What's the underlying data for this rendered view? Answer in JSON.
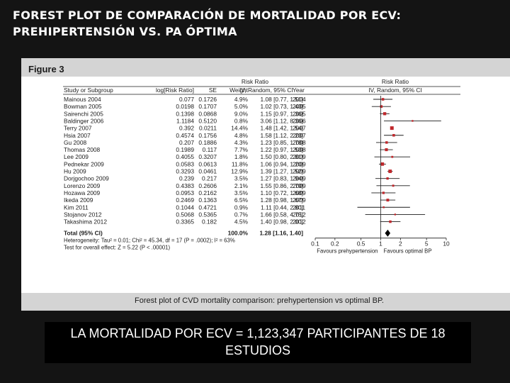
{
  "slide": {
    "title_line1": "FOREST PLOT DE COMPARACIÓN DE MORTALIDAD POR ECV:",
    "title_line2": "PREHIPERTENSIÓN VS. PA ÓPTIMA",
    "footer_text": "LA MORTALIDAD POR ECV = 1,123,347 PARTICIPANTES DE 18 ESTUDIOS"
  },
  "figure": {
    "label": "Figure 3",
    "caption": "Forest plot of CVD mortality comparison: prehypertension vs optimal BP."
  },
  "chart_data": {
    "type": "scatter",
    "scale": "log",
    "header": {
      "group_ratio_title": "Risk Ratio",
      "col_study": "Study or Subgroup",
      "col_logrr": "log[Risk Ratio]",
      "col_se": "SE",
      "col_weight": "Weight",
      "col_ci": "IV, Random, 95% CI",
      "col_year": "Year",
      "plot_title": "Risk Ratio",
      "plot_subtitle": "IV, Random, 95% CI"
    },
    "studies": [
      {
        "name": "Mainous 2004",
        "logrr": "0.077",
        "se": "0.1726",
        "weight": "4.9%",
        "rr": 1.08,
        "lo": 0.77,
        "hi": 1.51,
        "ci": "1.08 [0.77, 1.51]",
        "year": "2004",
        "w": 4.9
      },
      {
        "name": "Bowman 2005",
        "logrr": "0.0198",
        "se": "0.1707",
        "weight": "5.0%",
        "rr": 1.02,
        "lo": 0.73,
        "hi": 1.43,
        "ci": "1.02 [0.73, 1.43]",
        "year": "2005",
        "w": 5.0
      },
      {
        "name": "Sairenchi 2005",
        "logrr": "0.1398",
        "se": "0.0868",
        "weight": "9.0%",
        "rr": 1.15,
        "lo": 0.97,
        "hi": 1.36,
        "ci": "1.15 [0.97, 1.36]",
        "year": "2005",
        "w": 9.0
      },
      {
        "name": "Baldinger 2006",
        "logrr": "1.1184",
        "se": "0.5120",
        "weight": "0.8%",
        "rr": 3.06,
        "lo": 1.12,
        "hi": 8.36,
        "ci": "3.06 [1.12, 8.36]",
        "year": "2006",
        "w": 0.8
      },
      {
        "name": "Terry 2007",
        "logrr": "0.392",
        "se": "0.0211",
        "weight": "14.4%",
        "rr": 1.48,
        "lo": 1.42,
        "hi": 1.54,
        "ci": "1.48 [1.42, 1.54]",
        "year": "2007",
        "w": 14.4
      },
      {
        "name": "Hsia 2007",
        "logrr": "0.4574",
        "se": "0.1756",
        "weight": "4.8%",
        "rr": 1.58,
        "lo": 1.12,
        "hi": 2.23,
        "ci": "1.58 [1.12, 2.23]",
        "year": "2007",
        "w": 4.8
      },
      {
        "name": "Gu 2008",
        "logrr": "0.207",
        "se": "0.1886",
        "weight": "4.3%",
        "rr": 1.23,
        "lo": 0.85,
        "hi": 1.78,
        "ci": "1.23 [0.85, 1.78]",
        "year": "2008",
        "w": 4.3
      },
      {
        "name": "Thomas 2008",
        "logrr": "0.1989",
        "se": "0.117",
        "weight": "7.7%",
        "rr": 1.22,
        "lo": 0.97,
        "hi": 1.53,
        "ci": "1.22 [0.97, 1.53]",
        "year": "2008",
        "w": 7.7
      },
      {
        "name": "Lee 2009",
        "logrr": "0.4055",
        "se": "0.3207",
        "weight": "1.8%",
        "rr": 1.5,
        "lo": 0.8,
        "hi": 2.81,
        "ci": "1.50 [0.80, 2.81]",
        "year": "2009",
        "w": 1.8
      },
      {
        "name": "Pednekar 2009",
        "logrr": "0.0583",
        "se": "0.0613",
        "weight": "11.8%",
        "rr": 1.06,
        "lo": 0.94,
        "hi": 1.2,
        "ci": "1.06 [0.94, 1.20]",
        "year": "2009",
        "w": 11.8
      },
      {
        "name": "Hu 2009",
        "logrr": "0.3293",
        "se": "0.0461",
        "weight": "12.9%",
        "rr": 1.39,
        "lo": 1.27,
        "hi": 1.52,
        "ci": "1.39 [1.27, 1.52]",
        "year": "2009",
        "w": 12.9
      },
      {
        "name": "Dorjgochoo 2009",
        "logrr": "0.239",
        "se": "0.217",
        "weight": "3.5%",
        "rr": 1.27,
        "lo": 0.83,
        "hi": 1.94,
        "ci": "1.27 [0.83, 1.94]",
        "year": "2009",
        "w": 3.5
      },
      {
        "name": "Lorenzo 2009",
        "logrr": "0.4383",
        "se": "0.2606",
        "weight": "2.1%",
        "rr": 1.55,
        "lo": 0.86,
        "hi": 2.79,
        "ci": "1.55 [0.86, 2.79]",
        "year": "2009",
        "w": 2.1
      },
      {
        "name": "Hozawa 2009",
        "logrr": "0.0953",
        "se": "0.2162",
        "weight": "3.5%",
        "rr": 1.1,
        "lo": 0.72,
        "hi": 1.68,
        "ci": "1.10 [0.72, 1.68]",
        "year": "2009",
        "w": 3.5
      },
      {
        "name": "Ikeda 2009",
        "logrr": "0.2469",
        "se": "0.1363",
        "weight": "6.5%",
        "rr": 1.28,
        "lo": 0.98,
        "hi": 1.67,
        "ci": "1.28 [0.98, 1.67]",
        "year": "2009",
        "w": 6.5
      },
      {
        "name": "Kim 2011",
        "logrr": "0.1044",
        "se": "0.4721",
        "weight": "0.9%",
        "rr": 1.11,
        "lo": 0.44,
        "hi": 2.8,
        "ci": "1.11 [0.44, 2.80]",
        "year": "2011",
        "w": 0.9
      },
      {
        "name": "Stojanov 2012",
        "logrr": "0.5068",
        "se": "0.5365",
        "weight": "0.7%",
        "rr": 1.66,
        "lo": 0.58,
        "hi": 4.75,
        "ci": "1.66 [0.58, 4.75]",
        "year": "2012",
        "w": 0.7
      },
      {
        "name": "Takashima 2012",
        "logrr": "0.3365",
        "se": "0.182",
        "weight": "4.5%",
        "rr": 1.4,
        "lo": 0.98,
        "hi": 2.0,
        "ci": "1.40 [0.98, 2.00]",
        "year": "2012",
        "w": 4.5
      }
    ],
    "total": {
      "label": "Total (95% CI)",
      "weight": "100.0%",
      "rr": 1.28,
      "lo": 1.16,
      "hi": 1.4,
      "ci": "1.28 [1.16, 1.40]"
    },
    "heterogeneity": "Heterogeneity: Tau² = 0.01; Chi² = 45.34, df = 17 (P = .0002); I² = 63%",
    "overall_effect": "Test for overall effect: Z = 5.22 (P < .00001)",
    "x_ticks": [
      {
        "value": 0.1,
        "label": "0.1"
      },
      {
        "value": 0.2,
        "label": "0.2"
      },
      {
        "value": 0.5,
        "label": "0.5"
      },
      {
        "value": 1,
        "label": "1"
      },
      {
        "value": 2,
        "label": "2"
      },
      {
        "value": 5,
        "label": "5"
      },
      {
        "value": 10,
        "label": "10"
      }
    ],
    "xlim": [
      0.1,
      10
    ],
    "favours_left": "Favours prehypertension",
    "favours_right": "Favours optimal BP",
    "colors": {
      "marker": "#c0282c",
      "line": "#1c1c1c",
      "diamond": "#000000"
    }
  }
}
